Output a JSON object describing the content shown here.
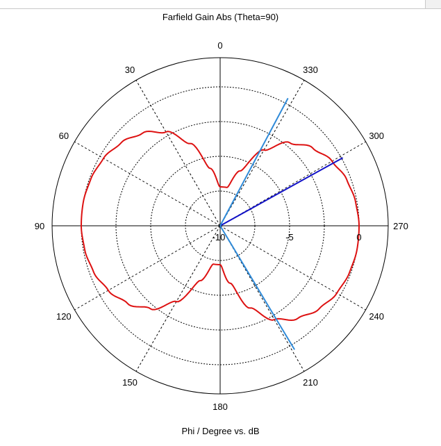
{
  "window": {
    "title": "Farfield Gain Abs (Theta=90)"
  },
  "chart_data": {
    "type": "polar",
    "title": "Farfield Gain Abs (Theta=90)",
    "xlabel": "Phi / Degree vs. dB",
    "angle_direction": "counterclockwise",
    "zero_location": "top",
    "angle_tick_labels": [
      "0",
      "30",
      "60",
      "90",
      "120",
      "150",
      "180",
      "210",
      "240",
      "270",
      "300",
      "330"
    ],
    "radial_range": [
      -10,
      0
    ],
    "radial_ticks": [
      -10,
      -5,
      0
    ],
    "radial_tick_labels": [
      "-10",
      "-5",
      "0"
    ],
    "grid": true,
    "colors": {
      "series": "#dd1111",
      "direction_marker": "#1111c8",
      "beamwidth_marker": "#2f8ad8"
    },
    "series": [
      {
        "phi": [
          0,
          10,
          20,
          30,
          40,
          50,
          60,
          70,
          80,
          90,
          100,
          110,
          120,
          130,
          140,
          150,
          160,
          170,
          180,
          190,
          200,
          210,
          220,
          230,
          240,
          250,
          260,
          270,
          280,
          290,
          300,
          310,
          320,
          330,
          340,
          350
        ],
        "gain_db": [
          -7.2,
          -5.8,
          -3.7,
          -2.2,
          -1.3,
          -0.7,
          -0.3,
          -0.1,
          0.0,
          0.0,
          -0.1,
          -0.3,
          -0.7,
          -1.3,
          -2.2,
          -3.7,
          -5.8,
          -7.2,
          -7.2,
          -5.8,
          -3.7,
          -2.2,
          -1.3,
          -0.7,
          -0.3,
          -0.1,
          0.0,
          0.0,
          -0.1,
          -0.3,
          -0.7,
          -1.3,
          -2.2,
          -3.7,
          -5.8,
          -7.2
        ]
      }
    ],
    "markers": [
      {
        "name": "main-lobe-direction",
        "phi": 299,
        "gain_db": 0.1,
        "color": "#1111c8"
      },
      {
        "name": "3db-beamwidth-1",
        "phi": 332,
        "gain_db": 0.4,
        "color": "#2f8ad8"
      },
      {
        "name": "3db-beamwidth-2",
        "phi": 211,
        "gain_db": 0.4,
        "color": "#2f8ad8"
      }
    ]
  }
}
